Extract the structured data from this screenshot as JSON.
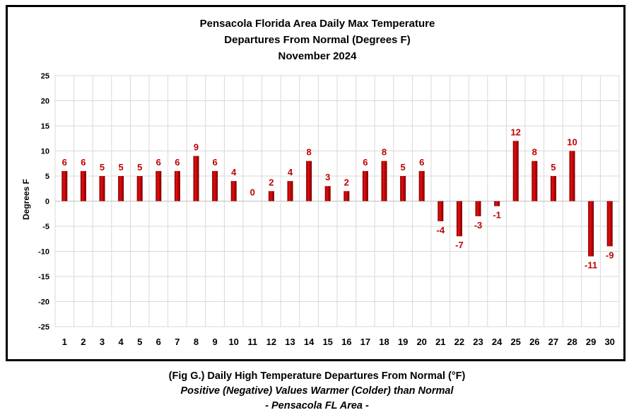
{
  "chart_data": {
    "type": "bar",
    "title": [
      "Pensacola Florida Area Daily Max Temperature",
      "Departures From Normal (Degrees F)",
      "November 2024"
    ],
    "xlabel": "",
    "ylabel": "Degrees F",
    "ylim": [
      -25,
      25
    ],
    "yticks": [
      25,
      20,
      15,
      10,
      5,
      0,
      -5,
      -10,
      -15,
      -20,
      -25
    ],
    "grid": true,
    "categories": [
      "1",
      "2",
      "3",
      "4",
      "5",
      "6",
      "7",
      "8",
      "9",
      "10",
      "11",
      "12",
      "13",
      "14",
      "15",
      "16",
      "17",
      "18",
      "19",
      "20",
      "21",
      "22",
      "23",
      "24",
      "25",
      "26",
      "27",
      "28",
      "29",
      "30"
    ],
    "values": [
      6,
      6,
      5,
      5,
      5,
      6,
      6,
      9,
      6,
      4,
      0,
      2,
      4,
      8,
      3,
      2,
      6,
      8,
      5,
      6,
      -4,
      -7,
      -3,
      -1,
      12,
      8,
      5,
      10,
      -11,
      -9
    ],
    "bar_color": "#cc0000",
    "label_color": "#c00000"
  },
  "caption": {
    "line1": "(Fig G.) Daily High Temperature Departures From Normal (°F)",
    "line2": "Positive (Negative) Values Warmer (Colder) than Normal",
    "line3": "- Pensacola FL Area -"
  }
}
